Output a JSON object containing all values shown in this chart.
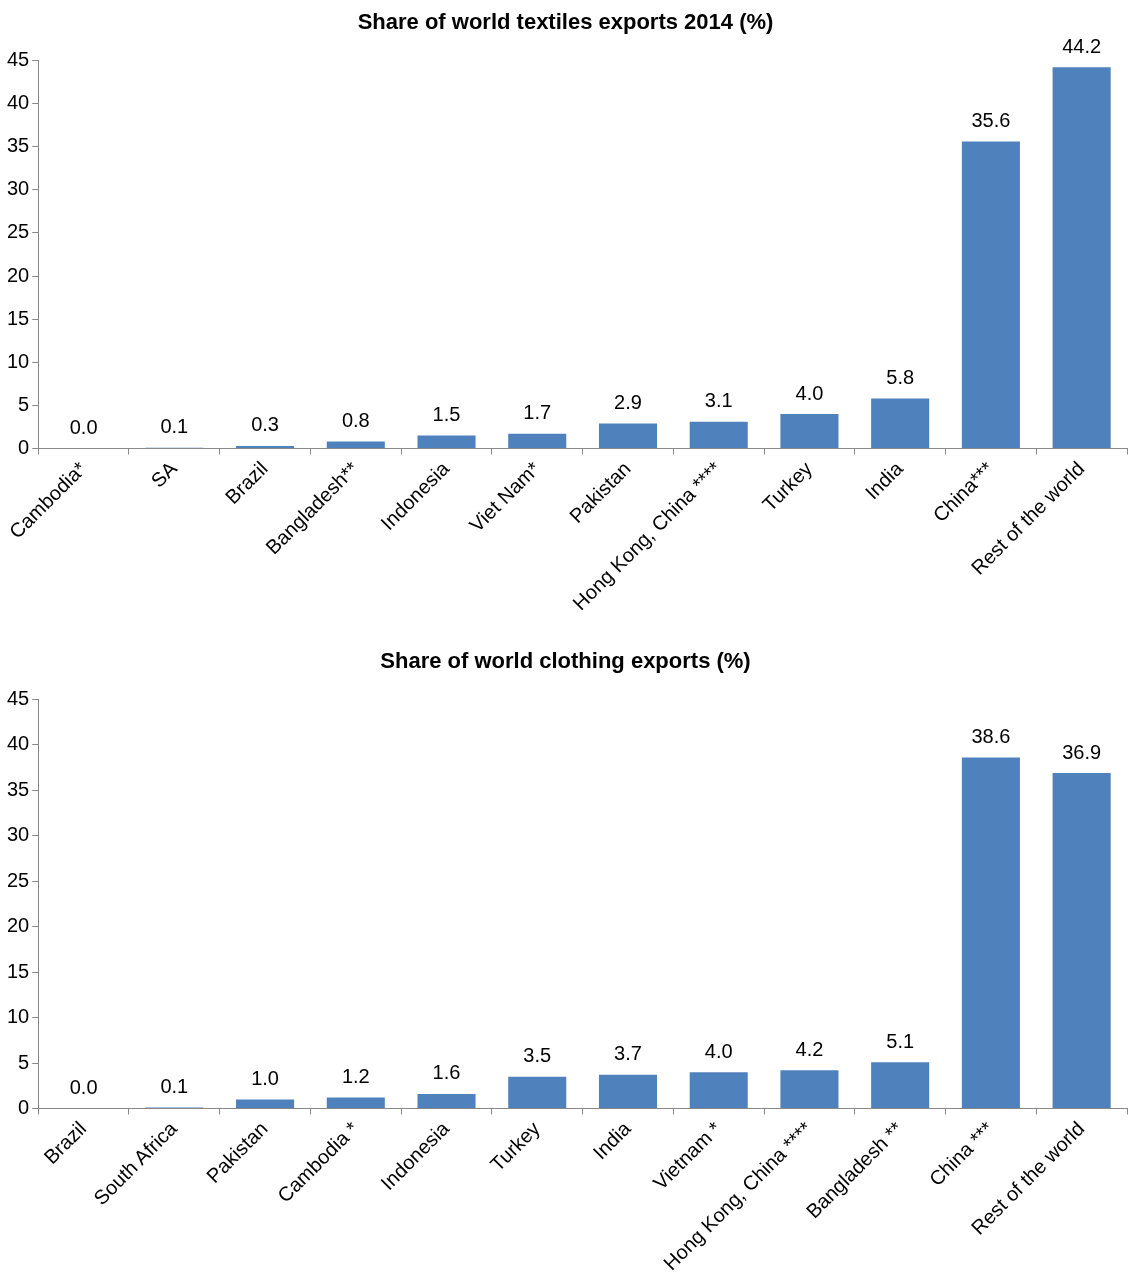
{
  "chart_data": [
    {
      "type": "bar",
      "title": "Share of world textiles exports 2014 (%)",
      "categories": [
        "Cambodia*",
        "SA",
        "Brazil",
        "Bangladesh**",
        "Indonesia",
        "Viet Nam*",
        "Pakistan",
        "Hong Kong, China ****",
        "Turkey",
        "India",
        "China***",
        "Rest of the world"
      ],
      "values": [
        0.0,
        0.1,
        0.3,
        0.8,
        1.5,
        1.7,
        2.9,
        3.1,
        4.0,
        5.8,
        35.6,
        44.2
      ],
      "value_labels": [
        "0.0",
        "0.1",
        "0.3",
        "0.8",
        "1.5",
        "1.7",
        "2.9",
        "3.1",
        "4.0",
        "5.8",
        "35.6",
        "44.2"
      ],
      "color": "#4f81bd",
      "ylim": [
        0,
        45
      ],
      "yticks": [
        0,
        5,
        10,
        15,
        20,
        25,
        30,
        35,
        40,
        45
      ],
      "grid": false,
      "legend": false
    },
    {
      "type": "bar",
      "title": "Share of world clothing exports (%)",
      "categories": [
        "Brazil",
        "South Africa",
        "Pakistan",
        "Cambodia *",
        "Indonesia",
        "Turkey",
        "India",
        "Vietnam *",
        "Hong Kong, China ****",
        "Bangladesh **",
        "China ***",
        "Rest of the world"
      ],
      "values": [
        0.0,
        0.1,
        1.0,
        1.2,
        1.6,
        3.5,
        3.7,
        4.0,
        4.2,
        5.1,
        38.6,
        36.9
      ],
      "value_labels": [
        "0.0",
        "0.1",
        "1.0",
        "1.2",
        "1.6",
        "3.5",
        "3.7",
        "4.0",
        "4.2",
        "5.1",
        "38.6",
        "36.9"
      ],
      "color": "#4f81bd",
      "ylim": [
        0,
        45
      ],
      "yticks": [
        0,
        5,
        10,
        15,
        20,
        25,
        30,
        35,
        40,
        45
      ],
      "grid": false,
      "legend": false
    }
  ]
}
